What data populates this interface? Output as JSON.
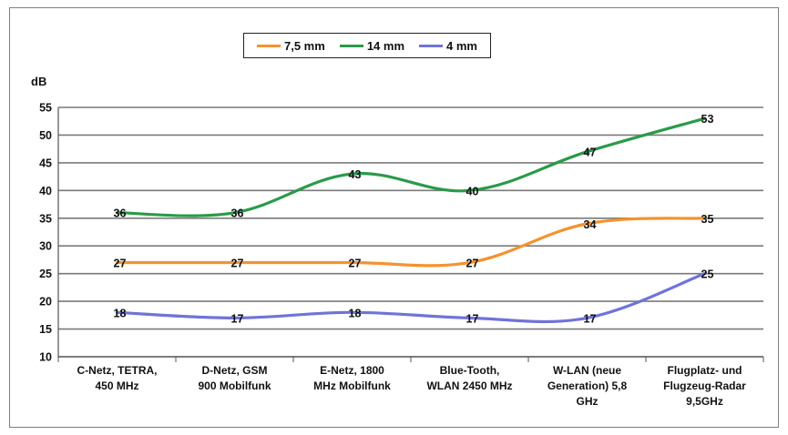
{
  "chart_data": {
    "type": "line",
    "title": "",
    "ylabel": "dB",
    "xlabel": "",
    "ylim": [
      10,
      55
    ],
    "yticks": [
      10,
      15,
      20,
      25,
      30,
      35,
      40,
      45,
      50,
      55
    ],
    "grid": true,
    "legend_position": "top",
    "categories": [
      [
        "C-Netz, TETRA,",
        "450 MHz"
      ],
      [
        "D-Netz, GSM",
        "900 Mobilfunk"
      ],
      [
        "E-Netz, 1800",
        "MHz Mobilfunk"
      ],
      [
        "Blue-Tooth,",
        "WLAN 2450 MHz"
      ],
      [
        "W-LAN (neue",
        "Generation) 5,8",
        "GHz"
      ],
      [
        "Flugplatz- und",
        "Flugzeug-Radar",
        "9,5GHz"
      ]
    ],
    "series": [
      {
        "name": "7,5 mm",
        "color": "#f5922f",
        "values": [
          27,
          27,
          27,
          27,
          34,
          35
        ]
      },
      {
        "name": "14 mm",
        "color": "#2a9a4a",
        "values": [
          36,
          36,
          43,
          40,
          47,
          53
        ]
      },
      {
        "name": "4 mm",
        "color": "#6f74d8",
        "values": [
          18,
          17,
          18,
          17,
          17,
          25
        ]
      }
    ]
  }
}
